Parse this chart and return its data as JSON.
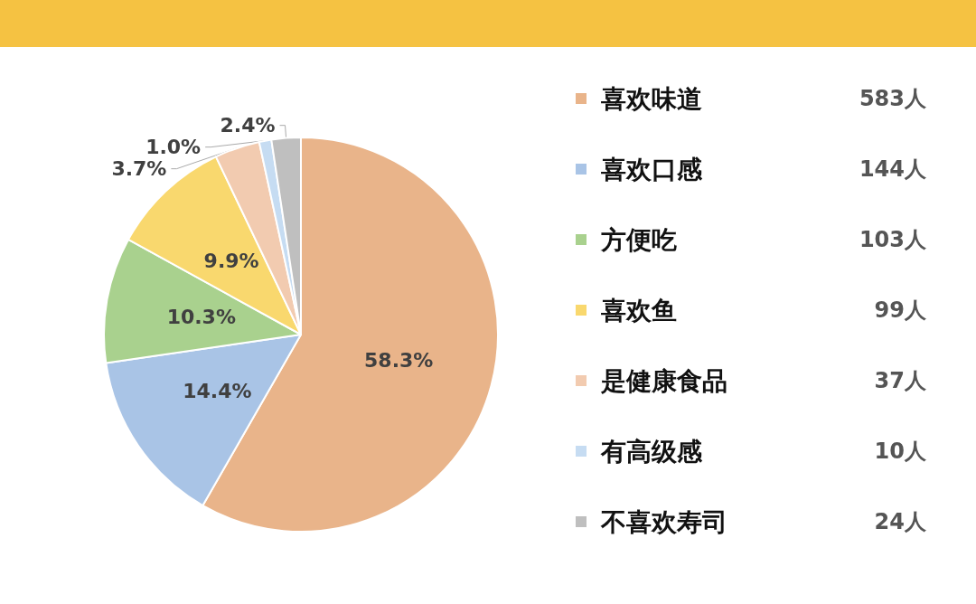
{
  "chart_data": {
    "type": "pie",
    "categories": [
      "喜欢味道",
      "喜欢口感",
      "方便吃",
      "喜欢鱼",
      "是健康食品",
      "有高级感",
      "不喜欢寿司"
    ],
    "values": [
      58.3,
      14.4,
      10.3,
      9.9,
      3.7,
      1.0,
      2.4
    ],
    "value_labels": [
      "58.3%",
      "14.4%",
      "10.3%",
      "9.9%",
      "3.7%",
      "1.0%",
      "2.4%"
    ],
    "colors": [
      "#e9b48a",
      "#a9c4e6",
      "#a9d18e",
      "#f9d86e",
      "#f2cbb0",
      "#c6dcf2",
      "#bfbfbf"
    ],
    "annotations": [
      "583人",
      "144人",
      "103人",
      "99人",
      "37人",
      "10人",
      "24人"
    ],
    "legend": "right"
  }
}
